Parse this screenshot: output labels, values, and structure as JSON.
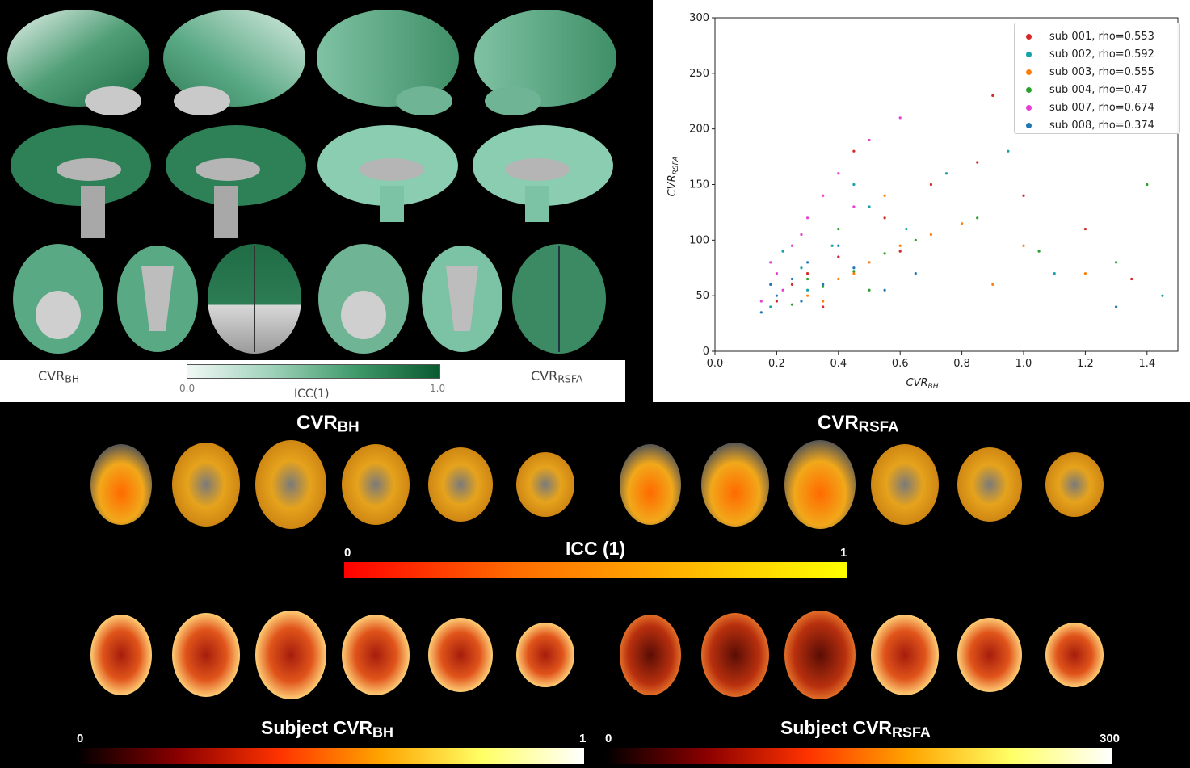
{
  "panel_a": {
    "left_label": "CVR",
    "left_label_sub": "BH",
    "right_label": "CVR",
    "right_label_sub": "RSFA",
    "colorbar_min": "0.0",
    "colorbar_max": "1.0",
    "colorbar_title": "ICC(1)",
    "colors": {
      "low": "#f1f8f5",
      "high": "#0a5a30"
    }
  },
  "panel_c": {
    "top_left_title": "CVR",
    "top_left_title_sub": "BH",
    "top_right_title": "CVR",
    "top_right_title_sub": "RSFA",
    "icc_bar_min": "0",
    "icc_bar_max": "1",
    "icc_bar_title": "ICC (1)",
    "subj_left_title": "Subject CVR",
    "subj_left_title_sub": "BH",
    "subj_left_min": "0",
    "subj_left_max": "1",
    "subj_right_title": "Subject CVR",
    "subj_right_title_sub": "RSFA",
    "subj_right_min": "0",
    "subj_right_max": "300"
  },
  "chart_data": {
    "type": "scatter",
    "xlabel": "CVR",
    "xlabel_sub": "BH",
    "ylabel": "CVR",
    "ylabel_sub": "RSFA",
    "xlim": [
      0.0,
      1.5
    ],
    "ylim": [
      0,
      300
    ],
    "xticks": [
      "0.0",
      "0.2",
      "0.4",
      "0.6",
      "0.8",
      "1.0",
      "1.2",
      "1.4"
    ],
    "yticks": [
      "0",
      "50",
      "100",
      "150",
      "200",
      "250",
      "300"
    ],
    "legend_position": "top-right",
    "series": [
      {
        "name": "sub 001, rho=0.553",
        "color": "#d62728",
        "points": [
          [
            0.2,
            45
          ],
          [
            0.3,
            70
          ],
          [
            0.4,
            85
          ],
          [
            0.55,
            120
          ],
          [
            0.7,
            150
          ],
          [
            0.85,
            170
          ],
          [
            1.0,
            140
          ],
          [
            1.2,
            110
          ],
          [
            0.6,
            90
          ],
          [
            0.25,
            60
          ],
          [
            0.45,
            180
          ],
          [
            0.9,
            230
          ],
          [
            1.35,
            65
          ],
          [
            0.35,
            40
          ]
        ]
      },
      {
        "name": "sub 002, rho=0.592",
        "color": "#17a2a8",
        "points": [
          [
            0.18,
            40
          ],
          [
            0.28,
            75
          ],
          [
            0.38,
            95
          ],
          [
            0.5,
            130
          ],
          [
            0.62,
            110
          ],
          [
            0.75,
            160
          ],
          [
            0.95,
            180
          ],
          [
            1.1,
            70
          ],
          [
            0.3,
            55
          ],
          [
            0.45,
            150
          ],
          [
            0.22,
            90
          ],
          [
            1.45,
            50
          ]
        ]
      },
      {
        "name": "sub 003, rho=0.555",
        "color": "#ff7f0e",
        "points": [
          [
            0.3,
            50
          ],
          [
            0.4,
            65
          ],
          [
            0.5,
            80
          ],
          [
            0.6,
            95
          ],
          [
            0.7,
            105
          ],
          [
            0.8,
            115
          ],
          [
            1.0,
            95
          ],
          [
            1.2,
            70
          ],
          [
            0.35,
            45
          ],
          [
            0.55,
            140
          ],
          [
            0.9,
            60
          ],
          [
            0.45,
            70
          ]
        ]
      },
      {
        "name": "sub 004, rho=0.47",
        "color": "#2ca02c",
        "points": [
          [
            0.25,
            42
          ],
          [
            0.35,
            58
          ],
          [
            0.45,
            72
          ],
          [
            0.55,
            88
          ],
          [
            0.65,
            100
          ],
          [
            0.85,
            120
          ],
          [
            1.05,
            90
          ],
          [
            1.3,
            80
          ],
          [
            0.3,
            65
          ],
          [
            0.5,
            55
          ],
          [
            0.4,
            110
          ],
          [
            1.4,
            150
          ]
        ]
      },
      {
        "name": "sub 007, rho=0.674",
        "color": "#e83fd0",
        "points": [
          [
            0.15,
            45
          ],
          [
            0.2,
            70
          ],
          [
            0.25,
            95
          ],
          [
            0.3,
            120
          ],
          [
            0.35,
            140
          ],
          [
            0.4,
            160
          ],
          [
            0.5,
            190
          ],
          [
            0.6,
            210
          ],
          [
            0.22,
            55
          ],
          [
            0.28,
            105
          ],
          [
            0.45,
            130
          ],
          [
            0.18,
            80
          ]
        ]
      },
      {
        "name": "sub 008, rho=0.374",
        "color": "#1f77b4",
        "points": [
          [
            0.15,
            35
          ],
          [
            0.2,
            50
          ],
          [
            0.25,
            65
          ],
          [
            0.3,
            80
          ],
          [
            0.35,
            60
          ],
          [
            0.45,
            75
          ],
          [
            0.55,
            55
          ],
          [
            0.65,
            70
          ],
          [
            1.3,
            40
          ],
          [
            0.28,
            45
          ],
          [
            0.4,
            95
          ],
          [
            0.18,
            60
          ]
        ]
      }
    ]
  }
}
